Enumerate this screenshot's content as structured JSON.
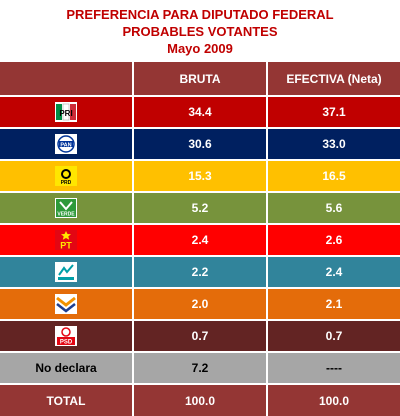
{
  "title": {
    "line1": "PREFERENCIA PARA DIPUTADO FEDERAL",
    "line2": "PROBABLES VOTANTES",
    "line3": "Mayo 2009"
  },
  "table": {
    "headers": {
      "party": "",
      "bruta": "BRUTA",
      "efectiva": "EFECTIVA (Neta)"
    },
    "rows": [
      {
        "logo": "pri-logo",
        "label": "",
        "bruta": "34.4",
        "efectiva": "37.1",
        "color": "#c00000"
      },
      {
        "logo": "pan-logo",
        "label": "",
        "bruta": "30.6",
        "efectiva": "33.0",
        "color": "#002060"
      },
      {
        "logo": "prd-logo",
        "label": "",
        "bruta": "15.3",
        "efectiva": "16.5",
        "color": "#ffc000"
      },
      {
        "logo": "verde-logo",
        "label": "",
        "bruta": "5.2",
        "efectiva": "5.6",
        "color": "#77933c"
      },
      {
        "logo": "pt-logo",
        "label": "",
        "bruta": "2.4",
        "efectiva": "2.6",
        "color": "#ff0000"
      },
      {
        "logo": "nueva-alianza-logo",
        "label": "",
        "bruta": "2.2",
        "efectiva": "2.4",
        "color": "#31849b"
      },
      {
        "logo": "convergencia-logo",
        "label": "",
        "bruta": "2.0",
        "efectiva": "2.1",
        "color": "#e46c0a"
      },
      {
        "logo": "psd-logo",
        "label": "",
        "bruta": "0.7",
        "efectiva": "0.7",
        "color": "#632423"
      },
      {
        "logo": "",
        "label": "No declara",
        "bruta": "7.2",
        "efectiva": "----",
        "color": "#a6a6a6"
      },
      {
        "logo": "",
        "label": "TOTAL",
        "bruta": "100.0",
        "efectiva": "100.0",
        "color": "#943634"
      }
    ],
    "header_color": "#943634"
  }
}
